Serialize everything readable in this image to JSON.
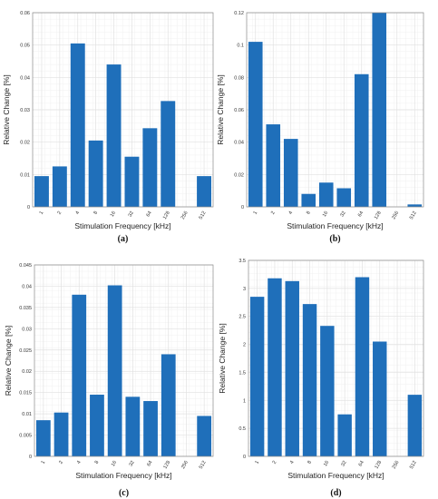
{
  "bar_color": "#1f6fba",
  "grid_color": "#e1e1e1",
  "chart_data": [
    {
      "type": "bar",
      "caption": "(a)",
      "categories": [
        "1",
        "2",
        "4",
        "8",
        "16",
        "32",
        "64",
        "128",
        "256",
        "512"
      ],
      "values": [
        0.0095,
        0.0125,
        0.0505,
        0.0205,
        0.044,
        0.0155,
        0.0243,
        0.0327,
        0,
        0.0095
      ],
      "yticks": [
        "0",
        "0.01",
        "0.02",
        "0.03",
        "0.04",
        "0.05",
        "0.06"
      ],
      "ylim": [
        0,
        0.06
      ],
      "xlabel": "Stimulation Frequency [kHz]",
      "ylabel": "Relative Change [%]",
      "grid": true
    },
    {
      "type": "bar",
      "caption": "(b)",
      "categories": [
        "1",
        "2",
        "4",
        "8",
        "16",
        "32",
        "64",
        "128",
        "256",
        "512"
      ],
      "values": [
        0.102,
        0.051,
        0.042,
        0.008,
        0.015,
        0.0115,
        0.082,
        0.12,
        0,
        0.0015
      ],
      "yticks": [
        "0",
        "0.02",
        "0.04",
        "0.06",
        "0.08",
        "0.1",
        "0.12"
      ],
      "ylim": [
        0,
        0.12
      ],
      "xlabel": "Stimulation Frequency [kHz]",
      "ylabel": "Relative Change [%]",
      "grid": true
    },
    {
      "type": "bar",
      "caption": "(c)",
      "categories": [
        "1",
        "2",
        "4",
        "8",
        "16",
        "32",
        "64",
        "128",
        "256",
        "512"
      ],
      "values": [
        0.0085,
        0.0103,
        0.038,
        0.0145,
        0.0402,
        0.014,
        0.013,
        0.024,
        0,
        0.0095
      ],
      "yticks": [
        "0",
        "0.005",
        "0.01",
        "0.015",
        "0.02",
        "0.025",
        "0.03",
        "0.035",
        "0.04",
        "0.045"
      ],
      "ylim": [
        0,
        0.045
      ],
      "xlabel": "Stimulation Frequency [kHz]",
      "ylabel": "Relative Change [%]",
      "grid": true
    },
    {
      "type": "bar",
      "caption": "(d)",
      "categories": [
        "1",
        "2",
        "4",
        "8",
        "16",
        "32",
        "64",
        "128",
        "256",
        "512"
      ],
      "values": [
        2.85,
        3.18,
        3.13,
        2.72,
        2.33,
        0.75,
        3.2,
        2.05,
        0,
        1.1
      ],
      "yticks": [
        "0",
        "0.5",
        "1",
        "1.5",
        "2",
        "2.5",
        "3",
        "3.5"
      ],
      "ylim": [
        0,
        3.5
      ],
      "xlabel": "Stimulation Frequency [kHz]",
      "ylabel": "Relative Change [%]",
      "grid": true
    }
  ]
}
